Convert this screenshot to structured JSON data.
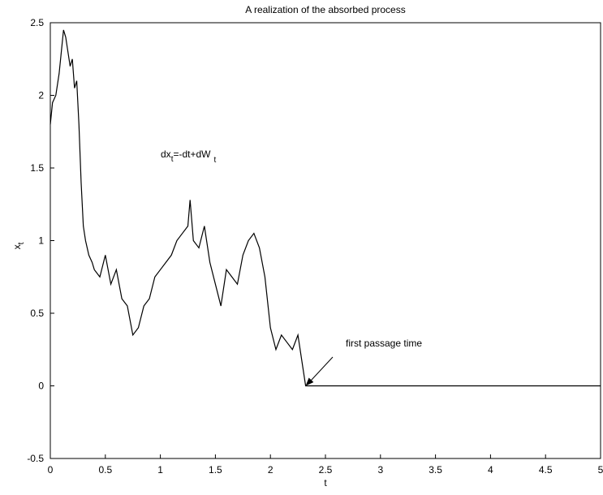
{
  "chart_data": {
    "type": "line",
    "title": "A realization of the absorbed process",
    "xlabel": "t",
    "ylabel": "x",
    "ylabel_sub": "t",
    "xlim": [
      0,
      5
    ],
    "ylim": [
      -0.5,
      2.5
    ],
    "xticks": [
      0,
      0.5,
      1,
      1.5,
      2,
      2.5,
      3,
      3.5,
      4,
      4.5,
      5
    ],
    "xtick_labels": [
      "0",
      "0.5",
      "1",
      "1.5",
      "2",
      "2.5",
      "3",
      "3.5",
      "4",
      "4.5",
      "5"
    ],
    "yticks": [
      -0.5,
      0,
      0.5,
      1,
      1.5,
      2,
      2.5
    ],
    "ytick_labels": [
      "-0.5",
      "0",
      "0.5",
      "1",
      "1.5",
      "2",
      "2.5"
    ],
    "grid": false,
    "line_color": "#000000",
    "series": [
      {
        "x": [
          0.0,
          0.02,
          0.05,
          0.08,
          0.1,
          0.12,
          0.14,
          0.16,
          0.18,
          0.2,
          0.22,
          0.24,
          0.26,
          0.28,
          0.3,
          0.32,
          0.35,
          0.38,
          0.4,
          0.45,
          0.5,
          0.55,
          0.6,
          0.65,
          0.7,
          0.75,
          0.8,
          0.85,
          0.9,
          0.95,
          1.0,
          1.05,
          1.1,
          1.15,
          1.2,
          1.25,
          1.27,
          1.3,
          1.35,
          1.4,
          1.45,
          1.5,
          1.55,
          1.6,
          1.65,
          1.7,
          1.75,
          1.8,
          1.85,
          1.9,
          1.95,
          2.0,
          2.05,
          2.1,
          2.15,
          2.2,
          2.25,
          2.3,
          2.32,
          2.4,
          3.0,
          4.0,
          5.0
        ],
        "y": [
          1.8,
          1.95,
          2.0,
          2.15,
          2.3,
          2.45,
          2.4,
          2.3,
          2.2,
          2.25,
          2.05,
          2.1,
          1.8,
          1.4,
          1.1,
          1.0,
          0.9,
          0.85,
          0.8,
          0.75,
          0.9,
          0.7,
          0.8,
          0.6,
          0.55,
          0.35,
          0.4,
          0.55,
          0.6,
          0.75,
          0.8,
          0.85,
          0.9,
          1.0,
          1.05,
          1.1,
          1.28,
          1.0,
          0.95,
          1.1,
          0.85,
          0.7,
          0.55,
          0.8,
          0.75,
          0.7,
          0.9,
          1.0,
          1.05,
          0.95,
          0.75,
          0.4,
          0.25,
          0.35,
          0.3,
          0.25,
          0.35,
          0.1,
          0.0,
          0.0,
          0.0,
          0.0,
          0.0
        ]
      }
    ],
    "annotations": [
      {
        "text": "dx",
        "sub": "t",
        "mid": "=-dt+dW",
        "sub2": "t"
      },
      {
        "text": "first passage time",
        "x": 2.32,
        "y": 0
      }
    ]
  }
}
